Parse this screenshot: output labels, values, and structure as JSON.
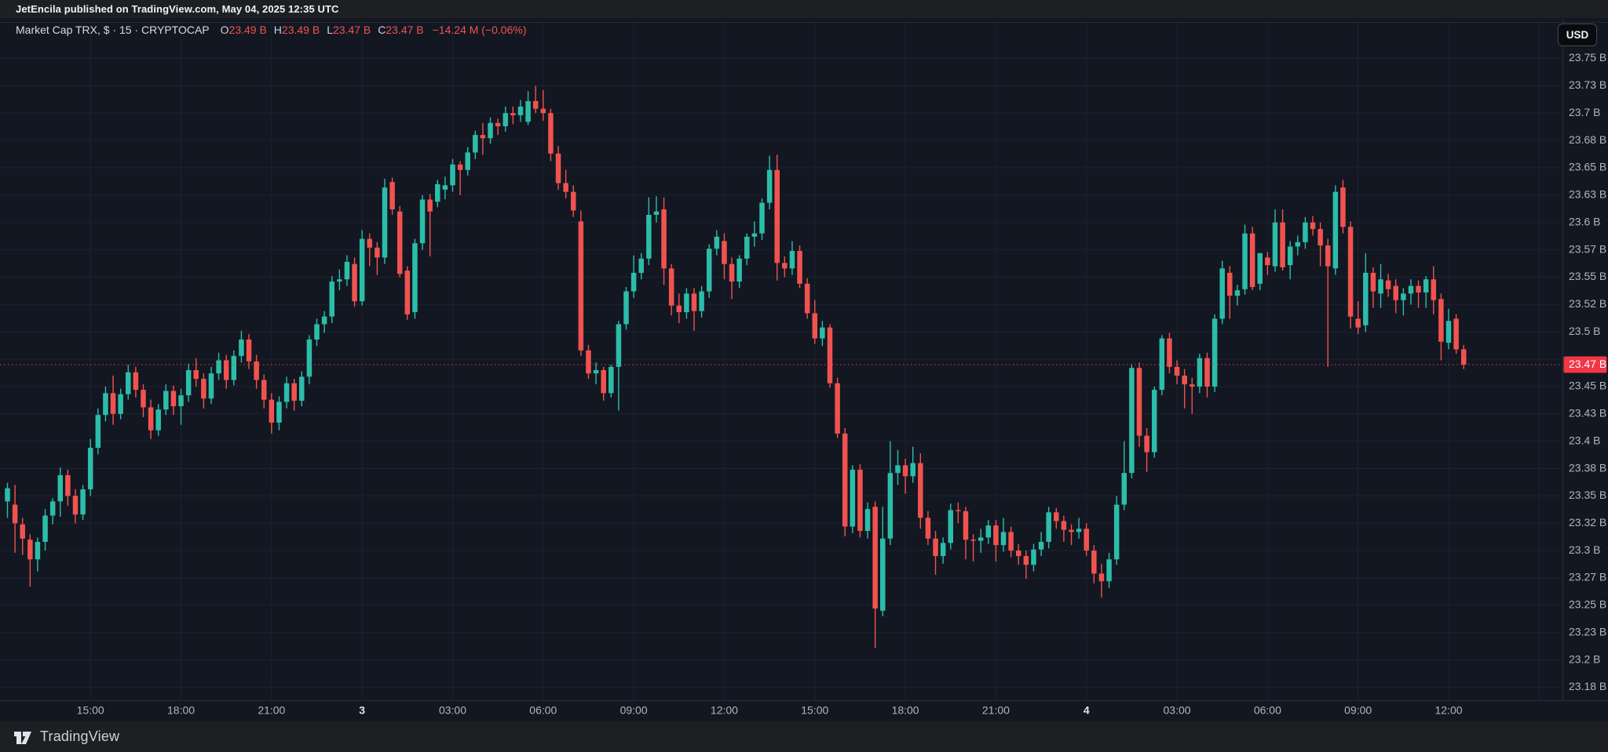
{
  "publish_bar": {
    "text": "JetEncila published on TradingView.com, May 04, 2025 12:35 UTC"
  },
  "legend": {
    "title": "Market Cap TRX, $ · 15 · CRYPTOCAP",
    "o_label": "O",
    "o_value": "23.49 B",
    "h_label": "H",
    "h_value": "23.49 B",
    "l_label": "L",
    "l_value": "23.47 B",
    "c_label": "C",
    "c_value": "23.47 B",
    "change": "−14.24 M (−0.06%)"
  },
  "currency_button": {
    "label": "USD"
  },
  "footer": {
    "brand": "TradingView"
  },
  "colors": {
    "background": "#131722",
    "bars": "#1e1f23",
    "grid": "#1d2231",
    "axis_separator": "#2a2e39",
    "axis_text": "#b2b5be",
    "axis_text_bright": "#e2e5ec",
    "up_candle": "#2cbda9",
    "down_candle": "#f0534f",
    "last_price": "#f23645"
  },
  "chart_data": {
    "type": "candlestick",
    "title": "Market Cap TRX",
    "quote_currency": "$",
    "interval": "15",
    "exchange": "CRYPTOCAP",
    "ylim": [
      23.175,
      23.755
    ],
    "grid": true,
    "last_price": {
      "label": "23.47 B",
      "value": 23.47
    },
    "price_axis": {
      "ticks": [
        {
          "label": "23.75 B",
          "value": 23.75
        },
        {
          "label": "23.73 B",
          "value": 23.725
        },
        {
          "label": "23.7 B",
          "value": 23.7
        },
        {
          "label": "23.68 B",
          "value": 23.675
        },
        {
          "label": "23.65 B",
          "value": 23.65
        },
        {
          "label": "23.63 B",
          "value": 23.625
        },
        {
          "label": "23.6 B",
          "value": 23.6
        },
        {
          "label": "23.57 B",
          "value": 23.575
        },
        {
          "label": "23.55 B",
          "value": 23.55
        },
        {
          "label": "23.52 B",
          "value": 23.525
        },
        {
          "label": "23.5 B",
          "value": 23.5
        },
        {
          "label": "",
          "value": 23.475
        },
        {
          "label": "23.45 B",
          "value": 23.45
        },
        {
          "label": "23.43 B",
          "value": 23.425
        },
        {
          "label": "23.4 B",
          "value": 23.4
        },
        {
          "label": "23.38 B",
          "value": 23.375
        },
        {
          "label": "23.35 B",
          "value": 23.35
        },
        {
          "label": "23.32 B",
          "value": 23.325
        },
        {
          "label": "23.3 B",
          "value": 23.3
        },
        {
          "label": "23.27 B",
          "value": 23.275
        },
        {
          "label": "23.25 B",
          "value": 23.25
        },
        {
          "label": "23.23 B",
          "value": 23.225
        },
        {
          "label": "23.2 B",
          "value": 23.2
        },
        {
          "label": "23.18 B",
          "value": 23.175
        }
      ]
    },
    "time_axis": {
      "ticks": [
        {
          "label": "15:00",
          "index": 11,
          "day": false
        },
        {
          "label": "18:00",
          "index": 23,
          "day": false
        },
        {
          "label": "21:00",
          "index": 35,
          "day": false
        },
        {
          "label": "3",
          "index": 47,
          "day": true
        },
        {
          "label": "03:00",
          "index": 59,
          "day": false
        },
        {
          "label": "06:00",
          "index": 71,
          "day": false
        },
        {
          "label": "09:00",
          "index": 83,
          "day": false
        },
        {
          "label": "12:00",
          "index": 95,
          "day": false
        },
        {
          "label": "15:00",
          "index": 107,
          "day": false
        },
        {
          "label": "18:00",
          "index": 119,
          "day": false
        },
        {
          "label": "21:00",
          "index": 131,
          "day": false
        },
        {
          "label": "4",
          "index": 143,
          "day": true
        },
        {
          "label": "03:00",
          "index": 155,
          "day": false
        },
        {
          "label": "06:00",
          "index": 167,
          "day": false
        },
        {
          "label": "09:00",
          "index": 179,
          "day": false
        },
        {
          "label": "12:00",
          "index": 191,
          "day": false
        },
        {
          "label": "",
          "index": 203,
          "day": false
        }
      ]
    },
    "candles": [
      [
        23.345,
        23.362,
        23.33,
        23.357
      ],
      [
        23.342,
        23.36,
        23.298,
        23.325
      ],
      [
        23.324,
        23.33,
        23.296,
        23.311
      ],
      [
        23.31,
        23.315,
        23.267,
        23.292
      ],
      [
        23.292,
        23.312,
        23.281,
        23.308
      ],
      [
        23.308,
        23.338,
        23.3,
        23.332
      ],
      [
        23.332,
        23.348,
        23.324,
        23.345
      ],
      [
        23.345,
        23.376,
        23.331,
        23.369
      ],
      [
        23.369,
        23.374,
        23.341,
        23.35
      ],
      [
        23.35,
        23.356,
        23.325,
        23.333
      ],
      [
        23.333,
        23.36,
        23.328,
        23.356
      ],
      [
        23.356,
        23.402,
        23.35,
        23.394
      ],
      [
        23.394,
        23.43,
        23.388,
        23.424
      ],
      [
        23.424,
        23.45,
        23.418,
        23.444
      ],
      [
        23.444,
        23.46,
        23.415,
        23.425
      ],
      [
        23.425,
        23.448,
        23.42,
        23.443
      ],
      [
        23.443,
        23.47,
        23.438,
        23.463
      ],
      [
        23.463,
        23.468,
        23.44,
        23.447
      ],
      [
        23.447,
        23.452,
        23.422,
        23.431
      ],
      [
        23.431,
        23.438,
        23.402,
        23.41
      ],
      [
        23.41,
        23.434,
        23.405,
        23.429
      ],
      [
        23.429,
        23.452,
        23.424,
        23.446
      ],
      [
        23.446,
        23.451,
        23.424,
        23.432
      ],
      [
        23.432,
        23.448,
        23.415,
        23.442
      ],
      [
        23.442,
        23.471,
        23.436,
        23.465
      ],
      [
        23.465,
        23.476,
        23.45,
        23.457
      ],
      [
        23.457,
        23.462,
        23.43,
        23.439
      ],
      [
        23.439,
        23.468,
        23.434,
        23.462
      ],
      [
        23.462,
        23.481,
        23.456,
        23.474
      ],
      [
        23.474,
        23.479,
        23.448,
        23.456
      ],
      [
        23.456,
        23.483,
        23.451,
        23.478
      ],
      [
        23.478,
        23.501,
        23.472,
        23.493
      ],
      [
        23.493,
        23.498,
        23.466,
        23.473
      ],
      [
        23.473,
        23.479,
        23.448,
        23.456
      ],
      [
        23.456,
        23.461,
        23.43,
        23.438
      ],
      [
        23.438,
        23.444,
        23.407,
        23.417
      ],
      [
        23.417,
        23.441,
        23.41,
        23.436
      ],
      [
        23.436,
        23.459,
        23.43,
        23.453
      ],
      [
        23.453,
        23.457,
        23.428,
        23.437
      ],
      [
        23.437,
        23.464,
        23.432,
        23.459
      ],
      [
        23.459,
        23.497,
        23.452,
        23.493
      ],
      [
        23.493,
        23.512,
        23.487,
        23.507
      ],
      [
        23.507,
        23.519,
        23.499,
        23.514
      ],
      [
        23.514,
        23.551,
        23.508,
        23.546
      ],
      [
        23.546,
        23.557,
        23.538,
        23.548
      ],
      [
        23.548,
        23.57,
        23.542,
        23.564
      ],
      [
        23.562,
        23.568,
        23.523,
        23.528
      ],
      [
        23.528,
        23.593,
        23.524,
        23.585
      ],
      [
        23.585,
        23.59,
        23.56,
        23.577
      ],
      [
        23.577,
        23.582,
        23.552,
        23.568
      ],
      [
        23.568,
        23.64,
        23.562,
        23.632
      ],
      [
        23.637,
        23.641,
        23.607,
        23.612
      ],
      [
        23.61,
        23.615,
        23.55,
        23.553
      ],
      [
        23.556,
        23.56,
        23.511,
        23.516
      ],
      [
        23.518,
        23.585,
        23.512,
        23.581
      ],
      [
        23.581,
        23.625,
        23.575,
        23.621
      ],
      [
        23.621,
        23.626,
        23.569,
        23.61
      ],
      [
        23.619,
        23.639,
        23.614,
        23.635
      ],
      [
        23.63,
        23.642,
        23.621,
        23.634
      ],
      [
        23.634,
        23.658,
        23.628,
        23.653
      ],
      [
        23.653,
        23.656,
        23.625,
        23.648
      ],
      [
        23.648,
        23.669,
        23.643,
        23.664
      ],
      [
        23.664,
        23.684,
        23.658,
        23.68
      ],
      [
        23.68,
        23.691,
        23.662,
        23.677
      ],
      [
        23.677,
        23.696,
        23.672,
        23.691
      ],
      [
        23.691,
        23.695,
        23.68,
        23.688
      ],
      [
        23.688,
        23.706,
        23.683,
        23.7
      ],
      [
        23.7,
        23.706,
        23.69,
        23.698
      ],
      [
        23.698,
        23.712,
        23.692,
        23.706
      ],
      [
        23.692,
        23.72,
        23.689,
        23.711
      ],
      [
        23.711,
        23.725,
        23.7,
        23.704
      ],
      [
        23.704,
        23.721,
        23.693,
        23.7
      ],
      [
        23.7,
        23.704,
        23.656,
        23.663
      ],
      [
        23.663,
        23.67,
        23.63,
        23.636
      ],
      [
        23.636,
        23.648,
        23.622,
        23.628
      ],
      [
        23.628,
        23.634,
        23.605,
        23.611
      ],
      [
        23.601,
        23.611,
        23.478,
        23.483
      ],
      [
        23.483,
        23.488,
        23.457,
        23.462
      ],
      [
        23.462,
        23.472,
        23.452,
        23.465
      ],
      [
        23.465,
        23.468,
        23.437,
        23.444
      ],
      [
        23.444,
        23.47,
        23.44,
        23.468
      ],
      [
        23.468,
        23.51,
        23.428,
        23.507
      ],
      [
        23.507,
        23.541,
        23.502,
        23.537
      ],
      [
        23.537,
        23.57,
        23.531,
        23.554
      ],
      [
        23.554,
        23.572,
        23.548,
        23.567
      ],
      [
        23.567,
        23.623,
        23.561,
        23.607
      ],
      [
        23.607,
        23.624,
        23.6,
        23.61
      ],
      [
        23.612,
        23.623,
        23.543,
        23.558
      ],
      [
        23.558,
        23.562,
        23.515,
        23.524
      ],
      [
        23.524,
        23.535,
        23.508,
        23.518
      ],
      [
        23.518,
        23.54,
        23.512,
        23.535
      ],
      [
        23.535,
        23.54,
        23.501,
        23.519
      ],
      [
        23.519,
        23.542,
        23.513,
        23.537
      ],
      [
        23.537,
        23.58,
        23.531,
        23.576
      ],
      [
        23.576,
        23.593,
        23.57,
        23.587
      ],
      [
        23.583,
        23.59,
        23.548,
        23.562
      ],
      [
        23.562,
        23.568,
        23.53,
        23.546
      ],
      [
        23.546,
        23.57,
        23.54,
        23.567
      ],
      [
        23.567,
        23.59,
        23.561,
        23.587
      ],
      [
        23.587,
        23.601,
        23.578,
        23.59
      ],
      [
        23.59,
        23.622,
        23.584,
        23.618
      ],
      [
        23.618,
        23.661,
        23.612,
        23.648
      ],
      [
        23.648,
        23.662,
        23.547,
        23.563
      ],
      [
        23.563,
        23.569,
        23.55,
        23.558
      ],
      [
        23.558,
        23.583,
        23.552,
        23.574
      ],
      [
        23.574,
        23.579,
        23.54,
        23.544
      ],
      [
        23.544,
        23.549,
        23.512,
        23.517
      ],
      [
        23.517,
        23.529,
        23.489,
        23.494
      ],
      [
        23.494,
        23.51,
        23.487,
        23.504
      ],
      [
        23.504,
        23.507,
        23.449,
        23.453
      ],
      [
        23.453,
        23.458,
        23.403,
        23.407
      ],
      [
        23.407,
        23.412,
        23.313,
        23.322
      ],
      [
        23.322,
        23.378,
        23.316,
        23.374
      ],
      [
        23.374,
        23.379,
        23.312,
        23.318
      ],
      [
        23.318,
        23.344,
        23.311,
        23.338
      ],
      [
        23.34,
        23.345,
        23.211,
        23.247
      ],
      [
        23.245,
        23.34,
        23.24,
        23.311
      ],
      [
        23.311,
        23.4,
        23.305,
        23.371
      ],
      [
        23.371,
        23.392,
        23.36,
        23.378
      ],
      [
        23.378,
        23.384,
        23.352,
        23.368
      ],
      [
        23.368,
        23.395,
        23.362,
        23.38
      ],
      [
        23.38,
        23.389,
        23.32,
        23.33
      ],
      [
        23.33,
        23.336,
        23.305,
        23.311
      ],
      [
        23.311,
        23.318,
        23.278,
        23.295
      ],
      [
        23.295,
        23.312,
        23.288,
        23.307
      ],
      [
        23.307,
        23.343,
        23.301,
        23.337
      ],
      [
        23.337,
        23.344,
        23.325,
        23.336
      ],
      [
        23.336,
        23.34,
        23.292,
        23.31
      ],
      [
        23.31,
        23.315,
        23.29,
        23.309
      ],
      [
        23.309,
        23.32,
        23.298,
        23.312
      ],
      [
        23.312,
        23.328,
        23.306,
        23.323
      ],
      [
        23.323,
        23.328,
        23.29,
        23.305
      ],
      [
        23.305,
        23.33,
        23.299,
        23.317
      ],
      [
        23.317,
        23.322,
        23.294,
        23.3
      ],
      [
        23.3,
        23.306,
        23.287,
        23.295
      ],
      [
        23.295,
        23.3,
        23.274,
        23.287
      ],
      [
        23.287,
        23.306,
        23.281,
        23.301
      ],
      [
        23.301,
        23.317,
        23.295,
        23.308
      ],
      [
        23.308,
        23.34,
        23.302,
        23.335
      ],
      [
        23.335,
        23.339,
        23.32,
        23.327
      ],
      [
        23.327,
        23.332,
        23.308,
        23.319
      ],
      [
        23.319,
        23.324,
        23.305,
        23.317
      ],
      [
        23.317,
        23.33,
        23.311,
        23.32
      ],
      [
        23.32,
        23.325,
        23.295,
        23.3
      ],
      [
        23.3,
        23.305,
        23.27,
        23.279
      ],
      [
        23.279,
        23.288,
        23.257,
        23.272
      ],
      [
        23.272,
        23.298,
        23.266,
        23.292
      ],
      [
        23.292,
        23.35,
        23.287,
        23.342
      ],
      [
        23.342,
        23.4,
        23.337,
        23.371
      ],
      [
        23.371,
        23.47,
        23.366,
        23.467
      ],
      [
        23.467,
        23.472,
        23.395,
        23.405
      ],
      [
        23.405,
        23.412,
        23.372,
        23.39
      ],
      [
        23.39,
        23.45,
        23.385,
        23.447
      ],
      [
        23.447,
        23.497,
        23.442,
        23.494
      ],
      [
        23.494,
        23.499,
        23.462,
        23.468
      ],
      [
        23.468,
        23.474,
        23.452,
        23.46
      ],
      [
        23.46,
        23.466,
        23.43,
        23.452
      ],
      [
        23.452,
        23.458,
        23.425,
        23.45
      ],
      [
        23.45,
        23.48,
        23.444,
        23.476
      ],
      [
        23.476,
        23.481,
        23.44,
        23.45
      ],
      [
        23.45,
        23.516,
        23.445,
        23.512
      ],
      [
        23.512,
        23.565,
        23.507,
        23.558
      ],
      [
        23.554,
        23.56,
        23.512,
        23.533
      ],
      [
        23.533,
        23.543,
        23.524,
        23.538
      ],
      [
        23.539,
        23.598,
        23.534,
        23.59
      ],
      [
        23.59,
        23.596,
        23.538,
        23.541
      ],
      [
        23.544,
        23.572,
        23.538,
        23.572
      ],
      [
        23.568,
        23.573,
        23.552,
        23.561
      ],
      [
        23.56,
        23.612,
        23.555,
        23.6
      ],
      [
        23.6,
        23.612,
        23.556,
        23.559
      ],
      [
        23.561,
        23.583,
        23.548,
        23.578
      ],
      [
        23.578,
        23.588,
        23.57,
        23.582
      ],
      [
        23.582,
        23.605,
        23.576,
        23.6
      ],
      [
        23.6,
        23.606,
        23.588,
        23.594
      ],
      [
        23.594,
        23.6,
        23.56,
        23.579
      ],
      [
        23.579,
        23.585,
        23.468,
        23.56
      ],
      [
        23.558,
        23.634,
        23.552,
        23.628
      ],
      [
        23.632,
        23.639,
        23.59,
        23.596
      ],
      [
        23.596,
        23.601,
        23.503,
        23.514
      ],
      [
        23.512,
        23.528,
        23.498,
        23.504
      ],
      [
        23.506,
        23.572,
        23.5,
        23.554
      ],
      [
        23.554,
        23.559,
        23.522,
        23.537
      ],
      [
        23.535,
        23.562,
        23.522,
        23.548
      ],
      [
        23.547,
        23.553,
        23.532,
        23.539
      ],
      [
        23.542,
        23.548,
        23.517,
        23.529
      ],
      [
        23.529,
        23.54,
        23.515,
        23.535
      ],
      [
        23.535,
        23.548,
        23.525,
        23.542
      ],
      [
        23.542,
        23.547,
        23.522,
        23.536
      ],
      [
        23.536,
        23.551,
        23.522,
        23.548
      ],
      [
        23.548,
        23.56,
        23.516,
        23.529
      ],
      [
        23.53,
        23.535,
        23.474,
        23.491
      ],
      [
        23.49,
        23.521,
        23.484,
        23.51
      ],
      [
        23.512,
        23.516,
        23.48,
        23.484
      ],
      [
        23.484,
        23.488,
        23.466,
        23.47
      ]
    ]
  }
}
